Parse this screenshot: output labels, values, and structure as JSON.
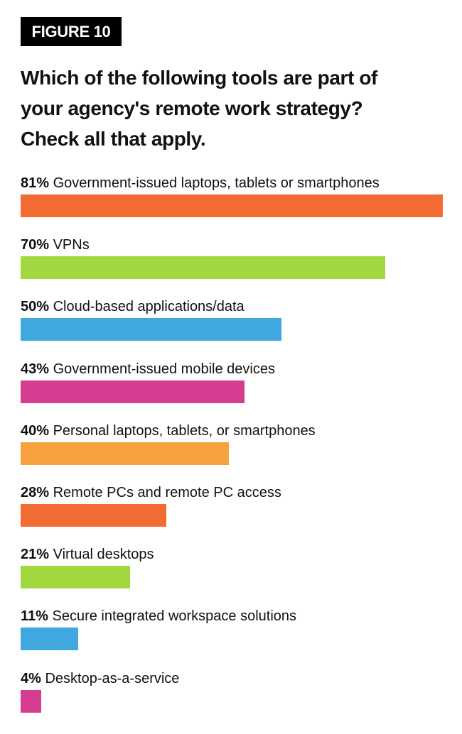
{
  "figure_label": "FIGURE 10",
  "title_lines": [
    "Which of the following tools are part of",
    "your agency's remote work strategy?",
    "Check all that apply."
  ],
  "chart_data": {
    "type": "bar",
    "orientation": "horizontal",
    "title": "Which of the following tools are part of your agency's remote work strategy? Check all that apply.",
    "categories": [
      "Government-issued laptops, tablets or smartphones",
      "VPNs",
      "Cloud-based applications/data",
      "Government-issued mobile devices",
      "Personal laptops, tablets, or smartphones",
      "Remote PCs and remote PC access",
      "Virtual desktops",
      "Secure integrated workspace solutions",
      "Desktop-as-a-service"
    ],
    "values": [
      81,
      70,
      50,
      43,
      40,
      28,
      21,
      11,
      4
    ],
    "value_labels": [
      "81%",
      "70%",
      "50%",
      "43%",
      "40%",
      "28%",
      "21%",
      "11%",
      "4%"
    ],
    "colors": [
      "#f26b33",
      "#a3d73f",
      "#3ea8df",
      "#d63c90",
      "#f7a13f",
      "#f26b33",
      "#a3d73f",
      "#3ea8df",
      "#d63c90"
    ],
    "xlim": [
      0,
      81
    ],
    "grid": false,
    "legend": "none"
  }
}
